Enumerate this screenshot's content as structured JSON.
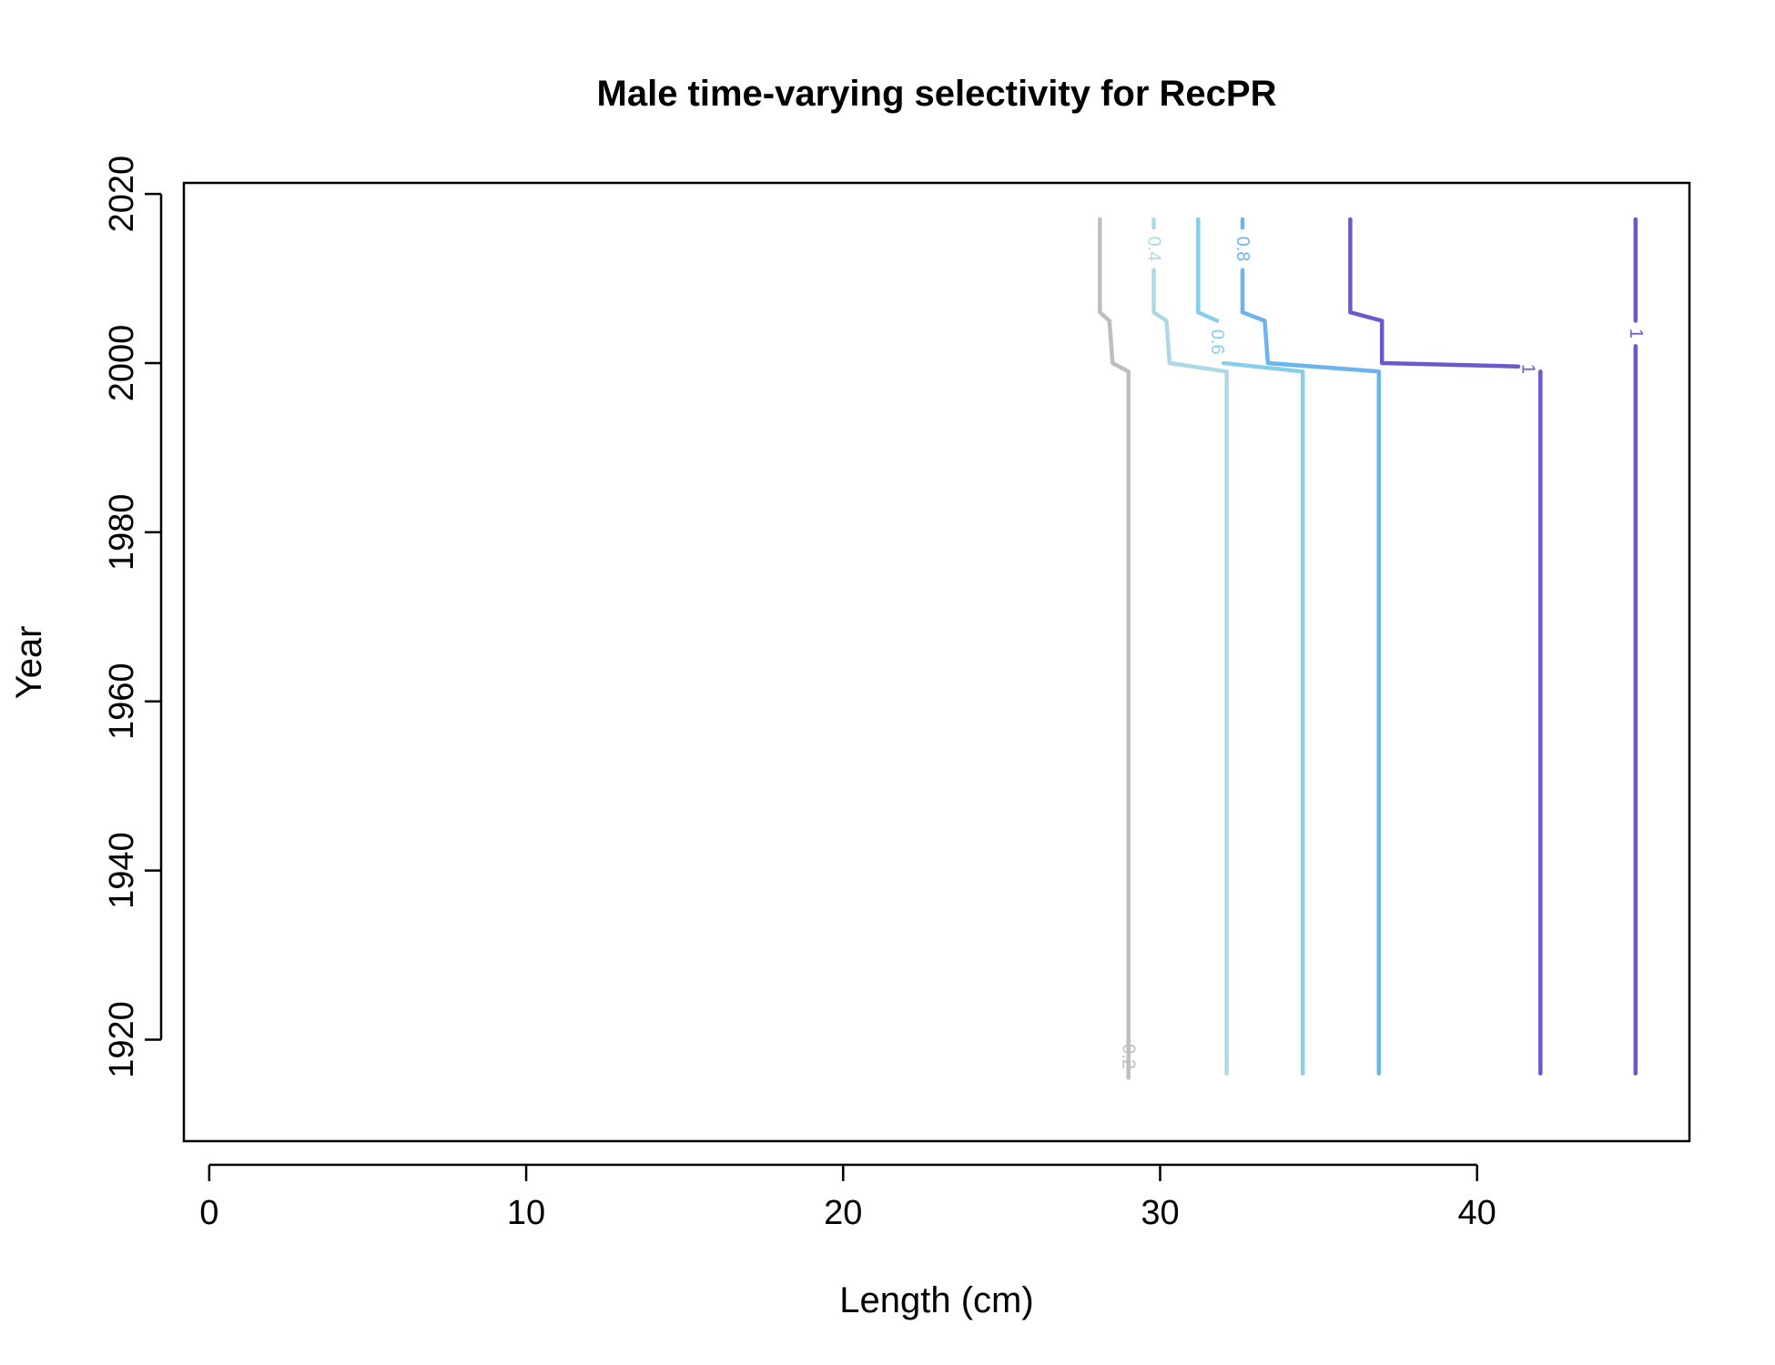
{
  "chart_data": {
    "type": "line",
    "subtype": "contour",
    "title": "Male time-varying selectivity for RecPR",
    "xlabel": "Length (cm)",
    "ylabel": "Year",
    "xlim": [
      -0.8,
      46.7
    ],
    "ylim": [
      1908,
      2021.3
    ],
    "xticks": [
      0,
      10,
      20,
      30,
      40
    ],
    "yticks": [
      1920,
      1940,
      1960,
      1980,
      2000,
      2020
    ],
    "grid": false,
    "legend": "none",
    "series": [
      {
        "name": "0.2",
        "color": "#bebebe",
        "label": {
          "text": "0.2",
          "x": 29.0,
          "y": 1918
        },
        "segments": [
          [
            [
              29.0,
              1916
            ],
            [
              29.0,
              1921
            ]
          ],
          [
            [
              29.0,
              1915.5
            ],
            [
              29.0,
              1916
            ]
          ],
          [
            [
              29.0,
              1921
            ],
            [
              29.0,
              1999
            ],
            [
              28.5,
              2000
            ],
            [
              28.4,
              2005
            ],
            [
              28.1,
              2006
            ],
            [
              28.1,
              2017
            ]
          ]
        ]
      },
      {
        "name": "0.4",
        "color": "#add8e6",
        "label": {
          "text": "0.4",
          "x": 29.8,
          "y": 2013.5
        },
        "segments": [
          [
            [
              32.1,
              1916
            ],
            [
              32.1,
              1999
            ],
            [
              30.3,
              2000
            ],
            [
              30.2,
              2005
            ],
            [
              29.8,
              2006
            ],
            [
              29.8,
              2011
            ]
          ],
          [
            [
              29.8,
              2016
            ],
            [
              29.8,
              2017
            ]
          ]
        ]
      },
      {
        "name": "0.6",
        "color": "#87ceeb",
        "label": {
          "text": "0.6",
          "x": 31.8,
          "y": 2002.5
        },
        "segments": [
          [
            [
              34.5,
              1916
            ],
            [
              34.5,
              1999
            ],
            [
              32.0,
              2000
            ]
          ],
          [
            [
              31.8,
              2005
            ],
            [
              31.2,
              2006
            ],
            [
              31.2,
              2017
            ]
          ]
        ]
      },
      {
        "name": "0.8",
        "color": "#6cb4ee",
        "label": {
          "text": "0.8",
          "x": 32.6,
          "y": 2013.5
        },
        "segments": [
          [
            [
              36.9,
              1916
            ],
            [
              36.9,
              1999
            ],
            [
              33.4,
              2000
            ],
            [
              33.3,
              2005
            ],
            [
              32.6,
              2006
            ],
            [
              32.6,
              2011
            ]
          ],
          [
            [
              32.6,
              2016
            ],
            [
              32.6,
              2017
            ]
          ]
        ]
      },
      {
        "name": "1",
        "color": "#6a5acd",
        "labels": [
          {
            "text": "1",
            "x": 41.6,
            "y": 1999.3
          },
          {
            "text": "1",
            "x": 45.0,
            "y": 2003.5
          }
        ],
        "segments": [
          [
            [
              42.0,
              1916
            ],
            [
              42.0,
              1999
            ]
          ],
          [
            [
              41.3,
              1999.6
            ],
            [
              37.0,
              2000
            ],
            [
              37.0,
              2005
            ],
            [
              36.0,
              2006
            ],
            [
              36.0,
              2017
            ]
          ],
          [
            [
              45.0,
              1916
            ],
            [
              45.0,
              2002
            ]
          ],
          [
            [
              45.0,
              2005
            ],
            [
              45.0,
              2017
            ]
          ]
        ]
      }
    ]
  }
}
